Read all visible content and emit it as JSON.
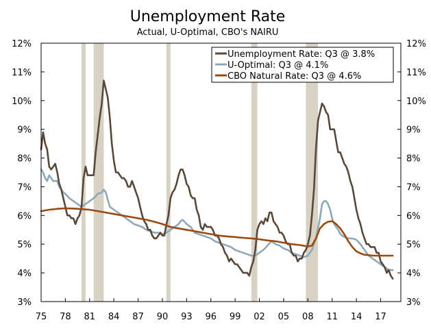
{
  "chart_data": {
    "type": "line",
    "title": "Unemployment Rate",
    "subtitle": "Actual, U-Optimal, CBO's NAIRU",
    "xlim": [
      1975,
      2019.5
    ],
    "ylim": [
      3,
      12
    ],
    "y_ticks": [
      3,
      4,
      5,
      6,
      7,
      8,
      9,
      10,
      11,
      12
    ],
    "y_tick_labels": [
      "3%",
      "4%",
      "5%",
      "6%",
      "7%",
      "8%",
      "9%",
      "10%",
      "11%",
      "12%"
    ],
    "x_ticks": [
      1975,
      1978,
      1981,
      1984,
      1987,
      1990,
      1993,
      1996,
      1999,
      2002,
      2005,
      2008,
      2011,
      2014,
      2017
    ],
    "x_tick_labels": [
      "75",
      "78",
      "81",
      "84",
      "87",
      "90",
      "93",
      "96",
      "99",
      "02",
      "05",
      "08",
      "11",
      "14",
      "17"
    ],
    "recessions": [
      [
        1980.0,
        1980.5
      ],
      [
        1981.5,
        1982.75
      ],
      [
        1990.5,
        1991.0
      ],
      [
        2001.0,
        2001.75
      ],
      [
        2007.75,
        2009.25
      ]
    ],
    "legend": {
      "position": "top-right"
    },
    "series": [
      {
        "name": "Unemployment Rate: Q3 @ 3.8%",
        "color": "#58483a",
        "x": [
          1975.0,
          1975.25,
          1975.5,
          1975.75,
          1976.0,
          1976.25,
          1976.5,
          1976.75,
          1977.0,
          1977.25,
          1977.5,
          1977.75,
          1978.0,
          1978.25,
          1978.5,
          1978.75,
          1979.0,
          1979.25,
          1979.5,
          1979.75,
          1980.0,
          1980.25,
          1980.5,
          1980.75,
          1981.0,
          1981.25,
          1981.5,
          1981.75,
          1982.0,
          1982.25,
          1982.5,
          1982.75,
          1983.0,
          1983.25,
          1983.5,
          1983.75,
          1984.0,
          1984.25,
          1984.5,
          1984.75,
          1985.0,
          1985.25,
          1985.5,
          1985.75,
          1986.0,
          1986.25,
          1986.5,
          1986.75,
          1987.0,
          1987.25,
          1987.5,
          1987.75,
          1988.0,
          1988.25,
          1988.5,
          1988.75,
          1989.0,
          1989.25,
          1989.5,
          1989.75,
          1990.0,
          1990.25,
          1990.5,
          1990.75,
          1991.0,
          1991.25,
          1991.5,
          1991.75,
          1992.0,
          1992.25,
          1992.5,
          1992.75,
          1993.0,
          1993.25,
          1993.5,
          1993.75,
          1994.0,
          1994.25,
          1994.5,
          1994.75,
          1995.0,
          1995.25,
          1995.5,
          1995.75,
          1996.0,
          1996.25,
          1996.5,
          1996.75,
          1997.0,
          1997.25,
          1997.5,
          1997.75,
          1998.0,
          1998.25,
          1998.5,
          1998.75,
          1999.0,
          1999.25,
          1999.5,
          1999.75,
          2000.0,
          2000.25,
          2000.5,
          2000.75,
          2001.0,
          2001.25,
          2001.5,
          2001.75,
          2002.0,
          2002.25,
          2002.5,
          2002.75,
          2003.0,
          2003.25,
          2003.5,
          2003.75,
          2004.0,
          2004.25,
          2004.5,
          2004.75,
          2005.0,
          2005.25,
          2005.5,
          2005.75,
          2006.0,
          2006.25,
          2006.5,
          2006.75,
          2007.0,
          2007.25,
          2007.5,
          2007.75,
          2008.0,
          2008.25,
          2008.5,
          2008.75,
          2009.0,
          2009.25,
          2009.5,
          2009.75,
          2010.0,
          2010.25,
          2010.5,
          2010.75,
          2011.0,
          2011.25,
          2011.5,
          2011.75,
          2012.0,
          2012.25,
          2012.5,
          2012.75,
          2013.0,
          2013.25,
          2013.5,
          2013.75,
          2014.0,
          2014.25,
          2014.5,
          2014.75,
          2015.0,
          2015.25,
          2015.5,
          2015.75,
          2016.0,
          2016.25,
          2016.5,
          2016.75,
          2017.0,
          2017.25,
          2017.5,
          2017.75,
          2018.0,
          2018.25,
          2018.5
        ],
        "y": [
          8.3,
          8.9,
          8.5,
          8.3,
          7.7,
          7.6,
          7.7,
          7.8,
          7.5,
          7.1,
          6.9,
          6.6,
          6.3,
          6.0,
          6.0,
          5.9,
          5.9,
          5.7,
          5.9,
          6.0,
          6.3,
          7.3,
          7.7,
          7.4,
          7.4,
          7.4,
          7.4,
          8.2,
          8.8,
          9.4,
          9.9,
          10.7,
          10.4,
          10.1,
          9.4,
          8.5,
          7.9,
          7.5,
          7.5,
          7.4,
          7.3,
          7.3,
          7.2,
          7.0,
          7.0,
          7.2,
          7.0,
          6.8,
          6.6,
          6.3,
          6.0,
          5.8,
          5.7,
          5.5,
          5.5,
          5.3,
          5.2,
          5.2,
          5.3,
          5.4,
          5.3,
          5.3,
          5.7,
          6.0,
          6.6,
          6.8,
          6.9,
          7.1,
          7.4,
          7.6,
          7.6,
          7.4,
          7.1,
          7.0,
          6.7,
          6.6,
          6.6,
          6.2,
          6.0,
          5.6,
          5.5,
          5.7,
          5.6,
          5.6,
          5.6,
          5.5,
          5.3,
          5.3,
          5.2,
          5.0,
          4.9,
          4.7,
          4.6,
          4.4,
          4.5,
          4.4,
          4.3,
          4.3,
          4.2,
          4.1,
          4.0,
          4.0,
          4.0,
          3.9,
          4.2,
          4.4,
          4.8,
          5.5,
          5.7,
          5.8,
          5.7,
          5.9,
          5.8,
          6.1,
          6.1,
          5.8,
          5.7,
          5.6,
          5.4,
          5.4,
          5.3,
          5.1,
          5.0,
          5.0,
          4.7,
          4.6,
          4.6,
          4.4,
          4.5,
          4.5,
          4.7,
          4.8,
          5.0,
          5.3,
          6.0,
          6.9,
          8.3,
          9.3,
          9.6,
          9.9,
          9.8,
          9.6,
          9.5,
          9.0,
          9.0,
          9.0,
          8.6,
          8.2,
          8.2,
          8.0,
          7.8,
          7.7,
          7.5,
          7.2,
          7.0,
          6.6,
          6.2,
          5.9,
          5.7,
          5.4,
          5.2,
          5.0,
          5.0,
          4.9,
          4.9,
          4.9,
          4.7,
          4.7,
          4.4,
          4.3,
          4.2,
          4.0,
          4.1,
          3.9,
          3.8
        ]
      },
      {
        "name": "U-Optimal: Q3 @ 4.1%",
        "color": "#8ea8b8",
        "x": [
          1975.0,
          1975.25,
          1975.5,
          1975.75,
          1976.0,
          1976.25,
          1976.5,
          1976.75,
          1977.0,
          1977.25,
          1977.5,
          1977.75,
          1978.0,
          1978.5,
          1979.0,
          1979.5,
          1980.0,
          1980.5,
          1981.0,
          1981.5,
          1982.0,
          1982.5,
          1982.75,
          1983.0,
          1983.5,
          1984.0,
          1984.5,
          1985.0,
          1985.5,
          1986.0,
          1986.5,
          1987.0,
          1987.5,
          1988.0,
          1988.5,
          1989.0,
          1989.5,
          1990.0,
          1990.5,
          1991.0,
          1991.5,
          1992.0,
          1992.25,
          1992.5,
          1993.0,
          1993.5,
          1994.0,
          1994.5,
          1995.0,
          1995.5,
          1996.0,
          1996.5,
          1997.0,
          1997.5,
          1998.0,
          1998.5,
          1999.0,
          1999.5,
          2000.0,
          2000.5,
          2001.0,
          2001.5,
          2002.0,
          2002.5,
          2003.0,
          2003.5,
          2004.0,
          2004.5,
          2005.0,
          2005.5,
          2006.0,
          2006.5,
          2007.0,
          2007.5,
          2008.0,
          2008.5,
          2009.0,
          2009.5,
          2009.75,
          2010.0,
          2010.25,
          2010.5,
          2010.75,
          2011.0,
          2011.25,
          2011.5,
          2011.75,
          2012.0,
          2012.5,
          2013.0,
          2013.5,
          2014.0,
          2014.5,
          2015.0,
          2015.5,
          2016.0,
          2016.5,
          2017.0,
          2017.5,
          2018.0,
          2018.5
        ],
        "y": [
          7.6,
          7.5,
          7.3,
          7.2,
          7.4,
          7.3,
          7.2,
          7.2,
          7.2,
          7.0,
          6.9,
          6.8,
          6.75,
          6.6,
          6.5,
          6.4,
          6.3,
          6.4,
          6.5,
          6.6,
          6.75,
          6.8,
          6.9,
          6.8,
          6.3,
          6.2,
          6.1,
          6.0,
          5.9,
          5.8,
          5.7,
          5.65,
          5.6,
          5.5,
          5.45,
          5.4,
          5.4,
          5.35,
          5.4,
          5.5,
          5.6,
          5.7,
          5.8,
          5.85,
          5.7,
          5.6,
          5.4,
          5.35,
          5.3,
          5.25,
          5.2,
          5.1,
          5.05,
          5.0,
          4.95,
          4.9,
          4.8,
          4.75,
          4.7,
          4.65,
          4.6,
          4.6,
          4.7,
          4.8,
          4.95,
          5.1,
          5.0,
          4.95,
          4.85,
          4.8,
          4.7,
          4.65,
          4.6,
          4.55,
          4.6,
          4.8,
          5.2,
          5.9,
          6.4,
          6.5,
          6.5,
          6.4,
          6.2,
          5.9,
          5.7,
          5.6,
          5.5,
          5.35,
          5.25,
          5.2,
          5.2,
          5.15,
          5.0,
          4.8,
          4.6,
          4.5,
          4.4,
          4.3,
          4.2,
          4.1,
          4.1
        ]
      },
      {
        "name": "CBO Natural Rate: Q3 @ 4.6%",
        "color": "#9a4a10",
        "x": [
          1975.0,
          1976.0,
          1977.0,
          1978.0,
          1979.0,
          1980.0,
          1981.0,
          1982.0,
          1983.0,
          1984.0,
          1985.0,
          1986.0,
          1987.0,
          1988.0,
          1989.0,
          1990.0,
          1991.0,
          1992.0,
          1993.0,
          1994.0,
          1995.0,
          1996.0,
          1997.0,
          1998.0,
          1999.0,
          2000.0,
          2001.0,
          2002.0,
          2003.0,
          2004.0,
          2005.0,
          2006.0,
          2007.0,
          2008.0,
          2008.5,
          2009.0,
          2009.5,
          2010.0,
          2010.5,
          2011.0,
          2011.5,
          2012.0,
          2012.5,
          2013.0,
          2013.5,
          2014.0,
          2014.5,
          2015.0,
          2015.5,
          2016.0,
          2017.0,
          2018.0,
          2018.5
        ],
        "y": [
          6.15,
          6.2,
          6.23,
          6.25,
          6.24,
          6.22,
          6.2,
          6.15,
          6.1,
          6.05,
          6.0,
          5.95,
          5.9,
          5.85,
          5.78,
          5.7,
          5.6,
          5.55,
          5.5,
          5.45,
          5.4,
          5.35,
          5.3,
          5.27,
          5.25,
          5.22,
          5.2,
          5.17,
          5.13,
          5.1,
          5.05,
          5.0,
          4.97,
          4.92,
          4.95,
          5.2,
          5.55,
          5.7,
          5.78,
          5.8,
          5.7,
          5.55,
          5.35,
          5.1,
          4.9,
          4.75,
          4.68,
          4.63,
          4.62,
          4.6,
          4.6,
          4.6,
          4.6
        ]
      }
    ]
  }
}
